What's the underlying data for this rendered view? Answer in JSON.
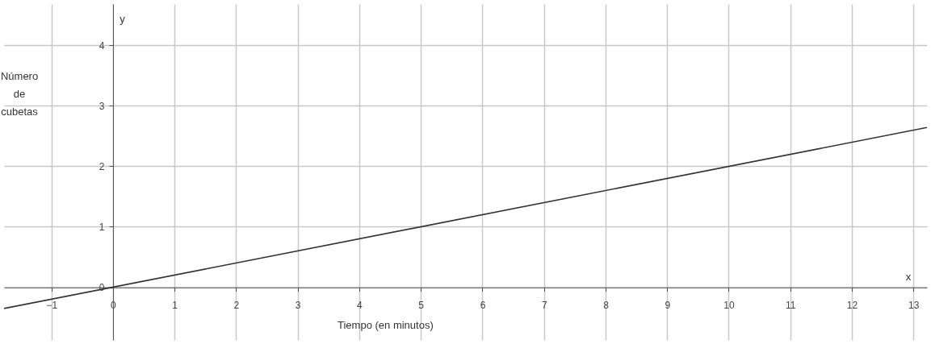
{
  "chart_data": {
    "type": "line",
    "xlabel": "Tiempo (en minutos)",
    "ylabel": "Número de cubetas",
    "annotations": [
      "y",
      "x"
    ],
    "x": [
      -1.77,
      13.22
    ],
    "series": [
      {
        "color": "#333333",
        "values": [
          -0.35,
          2.64
        ]
      }
    ],
    "xlim": [
      -1.77,
      13.22
    ],
    "ylim": [
      -0.87,
      4.68
    ],
    "xticks": [
      -1,
      0,
      1,
      2,
      3,
      4,
      5,
      6,
      7,
      8,
      9,
      10,
      11,
      12,
      13
    ],
    "yticks": [
      0,
      1,
      2,
      3,
      4
    ],
    "grid": true,
    "line_style": "solid",
    "marker": "none"
  }
}
